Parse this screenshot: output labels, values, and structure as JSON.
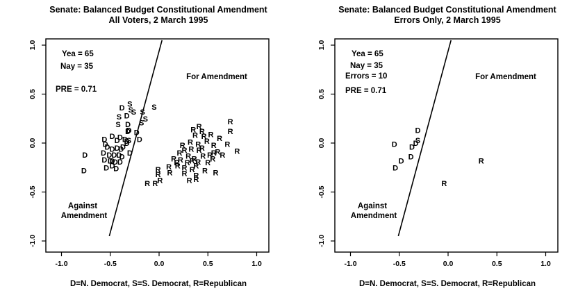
{
  "page": {
    "background": "#ffffff"
  },
  "colors": {
    "yea": "#ee0000",
    "nay": "#0000cc",
    "axis": "#000000",
    "cutline": "#000000"
  },
  "axes": {
    "tick_values": [
      -1,
      -0.5,
      0,
      0.5,
      1
    ],
    "x_tick_labels": [
      "-1.0",
      "-0.5",
      "0.0",
      "0.5",
      "1.0"
    ],
    "y_tick_labels": [
      "-1.0",
      "-0.5",
      "0.0",
      "0.5",
      "1.0"
    ],
    "xlim": [
      -1.15,
      1.12
    ],
    "ylim": [
      -1.08,
      1.07
    ],
    "grid": false
  },
  "points_format": [
    "glyph",
    "vote",
    "x",
    "y"
  ],
  "glyph_key": {
    "D": "N. Democrat",
    "S": "S. Democrat",
    "R": "Republican"
  },
  "chart_data": [
    {
      "type": "scatter",
      "title": "Senate: Balanced Budget Constitutional Amendment",
      "subtitle": "All Voters, 2 March 1995",
      "xlabel": "D=N. Democrat, S=S. Democrat, R=Republican",
      "legend": {
        "yea": {
          "text": "Yea =  65",
          "value": 65
        },
        "nay": {
          "text": "Nay =  35",
          "value": 35
        },
        "pre": {
          "text": "PRE =  0.71",
          "value": 0.71
        }
      },
      "annotations": {
        "for_label": "For Amendment",
        "against_line1": "Against",
        "against_line2": "Amendment"
      },
      "cutline": {
        "x1": -0.51,
        "y1": -0.95,
        "x2": 0.03,
        "y2": 1.05
      },
      "points": [
        [
          "S",
          "nay",
          -0.3,
          0.4
        ],
        [
          "S",
          "nay",
          -0.29,
          0.34
        ],
        [
          "S",
          "nay",
          -0.26,
          0.32
        ],
        [
          "S",
          "nay",
          -0.41,
          0.27
        ],
        [
          "S",
          "nay",
          -0.42,
          0.19
        ],
        [
          "D",
          "nay",
          -0.38,
          0.36
        ],
        [
          "D",
          "nay",
          -0.33,
          0.28
        ],
        [
          "D",
          "nay",
          -0.32,
          0.19
        ],
        [
          "D",
          "nay",
          -0.31,
          0.13
        ],
        [
          "D",
          "nay",
          -0.32,
          0.12
        ],
        [
          "D",
          "nay",
          -0.48,
          0.07
        ],
        [
          "D",
          "nay",
          -0.4,
          0.06
        ],
        [
          "D",
          "nay",
          -0.35,
          0.04
        ],
        [
          "D",
          "nay",
          -0.56,
          0.04
        ],
        [
          "D",
          "nay",
          -0.43,
          0.03
        ],
        [
          "D",
          "nay",
          -0.33,
          0.02
        ],
        [
          "D",
          "nay",
          -0.53,
          -0.04
        ],
        [
          "D",
          "nay",
          -0.48,
          -0.06
        ],
        [
          "D",
          "nay",
          -0.43,
          -0.05
        ],
        [
          "D",
          "nay",
          -0.39,
          -0.06
        ],
        [
          "D",
          "nay",
          -0.57,
          -0.1
        ],
        [
          "D",
          "nay",
          -0.51,
          -0.12
        ],
        [
          "D",
          "nay",
          -0.46,
          -0.12
        ],
        [
          "D",
          "nay",
          -0.41,
          -0.12
        ],
        [
          "D",
          "nay",
          -0.3,
          -0.1
        ],
        [
          "D",
          "nay",
          -0.56,
          -0.17
        ],
        [
          "D",
          "nay",
          -0.5,
          -0.18
        ],
        [
          "D",
          "nay",
          -0.45,
          -0.19
        ],
        [
          "D",
          "nay",
          -0.4,
          -0.19
        ],
        [
          "D",
          "nay",
          -0.48,
          -0.23
        ],
        [
          "D",
          "nay",
          -0.44,
          -0.26
        ],
        [
          "D",
          "nay",
          -0.76,
          -0.12
        ],
        [
          "D",
          "nay",
          -0.77,
          -0.28
        ],
        [
          "R",
          "nay",
          0.34,
          -0.18
        ],
        [
          "R",
          "nay",
          -0.04,
          -0.41
        ],
        [
          "D",
          "yea",
          -0.31,
          0.13
        ],
        [
          "D",
          "yea",
          -0.33,
          0.0
        ],
        [
          "D",
          "yea",
          -0.37,
          -0.04
        ],
        [
          "D",
          "yea",
          -0.55,
          -0.01
        ],
        [
          "D",
          "yea",
          -0.38,
          -0.14
        ],
        [
          "D",
          "yea",
          -0.48,
          -0.18
        ],
        [
          "D",
          "yea",
          -0.54,
          -0.25
        ],
        [
          "D",
          "yea",
          -0.23,
          0.11
        ],
        [
          "D",
          "yea",
          -0.2,
          0.04
        ],
        [
          "S",
          "yea",
          -0.31,
          0.03
        ],
        [
          "S",
          "yea",
          -0.17,
          0.32
        ],
        [
          "S",
          "yea",
          -0.18,
          0.21
        ],
        [
          "S",
          "yea",
          -0.14,
          0.25
        ],
        [
          "S",
          "yea",
          -0.05,
          0.37
        ],
        [
          "R",
          "yea",
          0.41,
          0.17
        ],
        [
          "R",
          "yea",
          0.73,
          0.22
        ],
        [
          "R",
          "yea",
          0.73,
          0.12
        ],
        [
          "R",
          "yea",
          0.37,
          0.08
        ],
        [
          "R",
          "yea",
          0.46,
          0.07
        ],
        [
          "R",
          "yea",
          0.53,
          0.09
        ],
        [
          "R",
          "yea",
          0.32,
          0.01
        ],
        [
          "R",
          "yea",
          0.4,
          -0.01
        ],
        [
          "R",
          "yea",
          0.56,
          -0.02
        ],
        [
          "R",
          "yea",
          0.7,
          -0.01
        ],
        [
          "R",
          "yea",
          0.8,
          -0.08
        ],
        [
          "R",
          "yea",
          0.26,
          -0.07
        ],
        [
          "R",
          "yea",
          0.33,
          -0.06
        ],
        [
          "R",
          "yea",
          0.41,
          -0.07
        ],
        [
          "R",
          "yea",
          0.56,
          -0.1
        ],
        [
          "R",
          "yea",
          0.6,
          -0.09
        ],
        [
          "R",
          "yea",
          0.52,
          -0.12
        ],
        [
          "R",
          "yea",
          0.15,
          -0.16
        ],
        [
          "R",
          "yea",
          0.22,
          -0.17
        ],
        [
          "R",
          "yea",
          0.29,
          -0.2
        ],
        [
          "R",
          "yea",
          0.4,
          -0.19
        ],
        [
          "R",
          "yea",
          0.19,
          -0.23
        ],
        [
          "R",
          "yea",
          0.26,
          -0.25
        ],
        [
          "R",
          "yea",
          0.38,
          -0.23
        ],
        [
          "R",
          "yea",
          -0.01,
          -0.27
        ],
        [
          "R",
          "yea",
          0.11,
          -0.3
        ],
        [
          "R",
          "yea",
          0.26,
          -0.31
        ],
        [
          "R",
          "yea",
          0.38,
          -0.33
        ],
        [
          "R",
          "yea",
          0.58,
          -0.3
        ],
        [
          "R",
          "yea",
          -0.01,
          -0.32
        ],
        [
          "R",
          "yea",
          0.01,
          -0.38
        ],
        [
          "R",
          "yea",
          0.31,
          -0.38
        ],
        [
          "R",
          "yea",
          0.38,
          -0.37
        ],
        [
          "R",
          "yea",
          -0.12,
          -0.41
        ],
        [
          "R",
          "yea",
          0.44,
          0.12
        ],
        [
          "R",
          "yea",
          0.49,
          0.02
        ],
        [
          "R",
          "yea",
          0.35,
          0.14
        ],
        [
          "R",
          "yea",
          0.62,
          0.05
        ],
        [
          "R",
          "yea",
          0.45,
          -0.13
        ],
        [
          "R",
          "yea",
          0.5,
          -0.2
        ],
        [
          "R",
          "yea",
          0.34,
          -0.27
        ],
        [
          "R",
          "yea",
          0.21,
          -0.1
        ],
        [
          "R",
          "yea",
          0.1,
          -0.24
        ],
        [
          "R",
          "yea",
          0.47,
          -0.28
        ],
        [
          "R",
          "yea",
          0.55,
          -0.16
        ],
        [
          "R",
          "yea",
          0.65,
          -0.12
        ],
        [
          "R",
          "yea",
          0.3,
          -0.13
        ],
        [
          "R",
          "yea",
          0.24,
          -0.02
        ],
        [
          "R",
          "yea",
          0.36,
          -0.16
        ],
        [
          "R",
          "yea",
          0.44,
          -0.05
        ],
        [
          "R",
          "yea",
          0.18,
          -0.2
        ]
      ]
    },
    {
      "type": "scatter",
      "title": "Senate: Balanced Budget Constitutional Amendment",
      "subtitle": "Errors Only, 2 March 1995",
      "xlabel": "D=N. Democrat, S=S. Democrat, R=Republican",
      "legend": {
        "yea": {
          "text": "Yea =  65",
          "value": 65
        },
        "nay": {
          "text": "Nay =  35",
          "value": 35
        },
        "errors": {
          "text": "Errors =  10",
          "value": 10
        },
        "pre": {
          "text": "PRE =  0.71",
          "value": 0.71
        }
      },
      "annotations": {
        "for_label": "For Amendment",
        "against_line1": "Against",
        "against_line2": "Amendment"
      },
      "cutline": {
        "x1": -0.51,
        "y1": -0.95,
        "x2": 0.03,
        "y2": 1.05
      },
      "points": [
        [
          "D",
          "yea",
          -0.31,
          0.13
        ],
        [
          "S",
          "yea",
          -0.31,
          0.03
        ],
        [
          "D",
          "yea",
          -0.33,
          0.0
        ],
        [
          "D",
          "yea",
          -0.37,
          -0.04
        ],
        [
          "D",
          "yea",
          -0.55,
          -0.01
        ],
        [
          "D",
          "yea",
          -0.38,
          -0.14
        ],
        [
          "D",
          "yea",
          -0.48,
          -0.18
        ],
        [
          "D",
          "yea",
          -0.54,
          -0.25
        ],
        [
          "R",
          "nay",
          0.34,
          -0.18
        ],
        [
          "R",
          "nay",
          -0.04,
          -0.41
        ]
      ]
    }
  ]
}
